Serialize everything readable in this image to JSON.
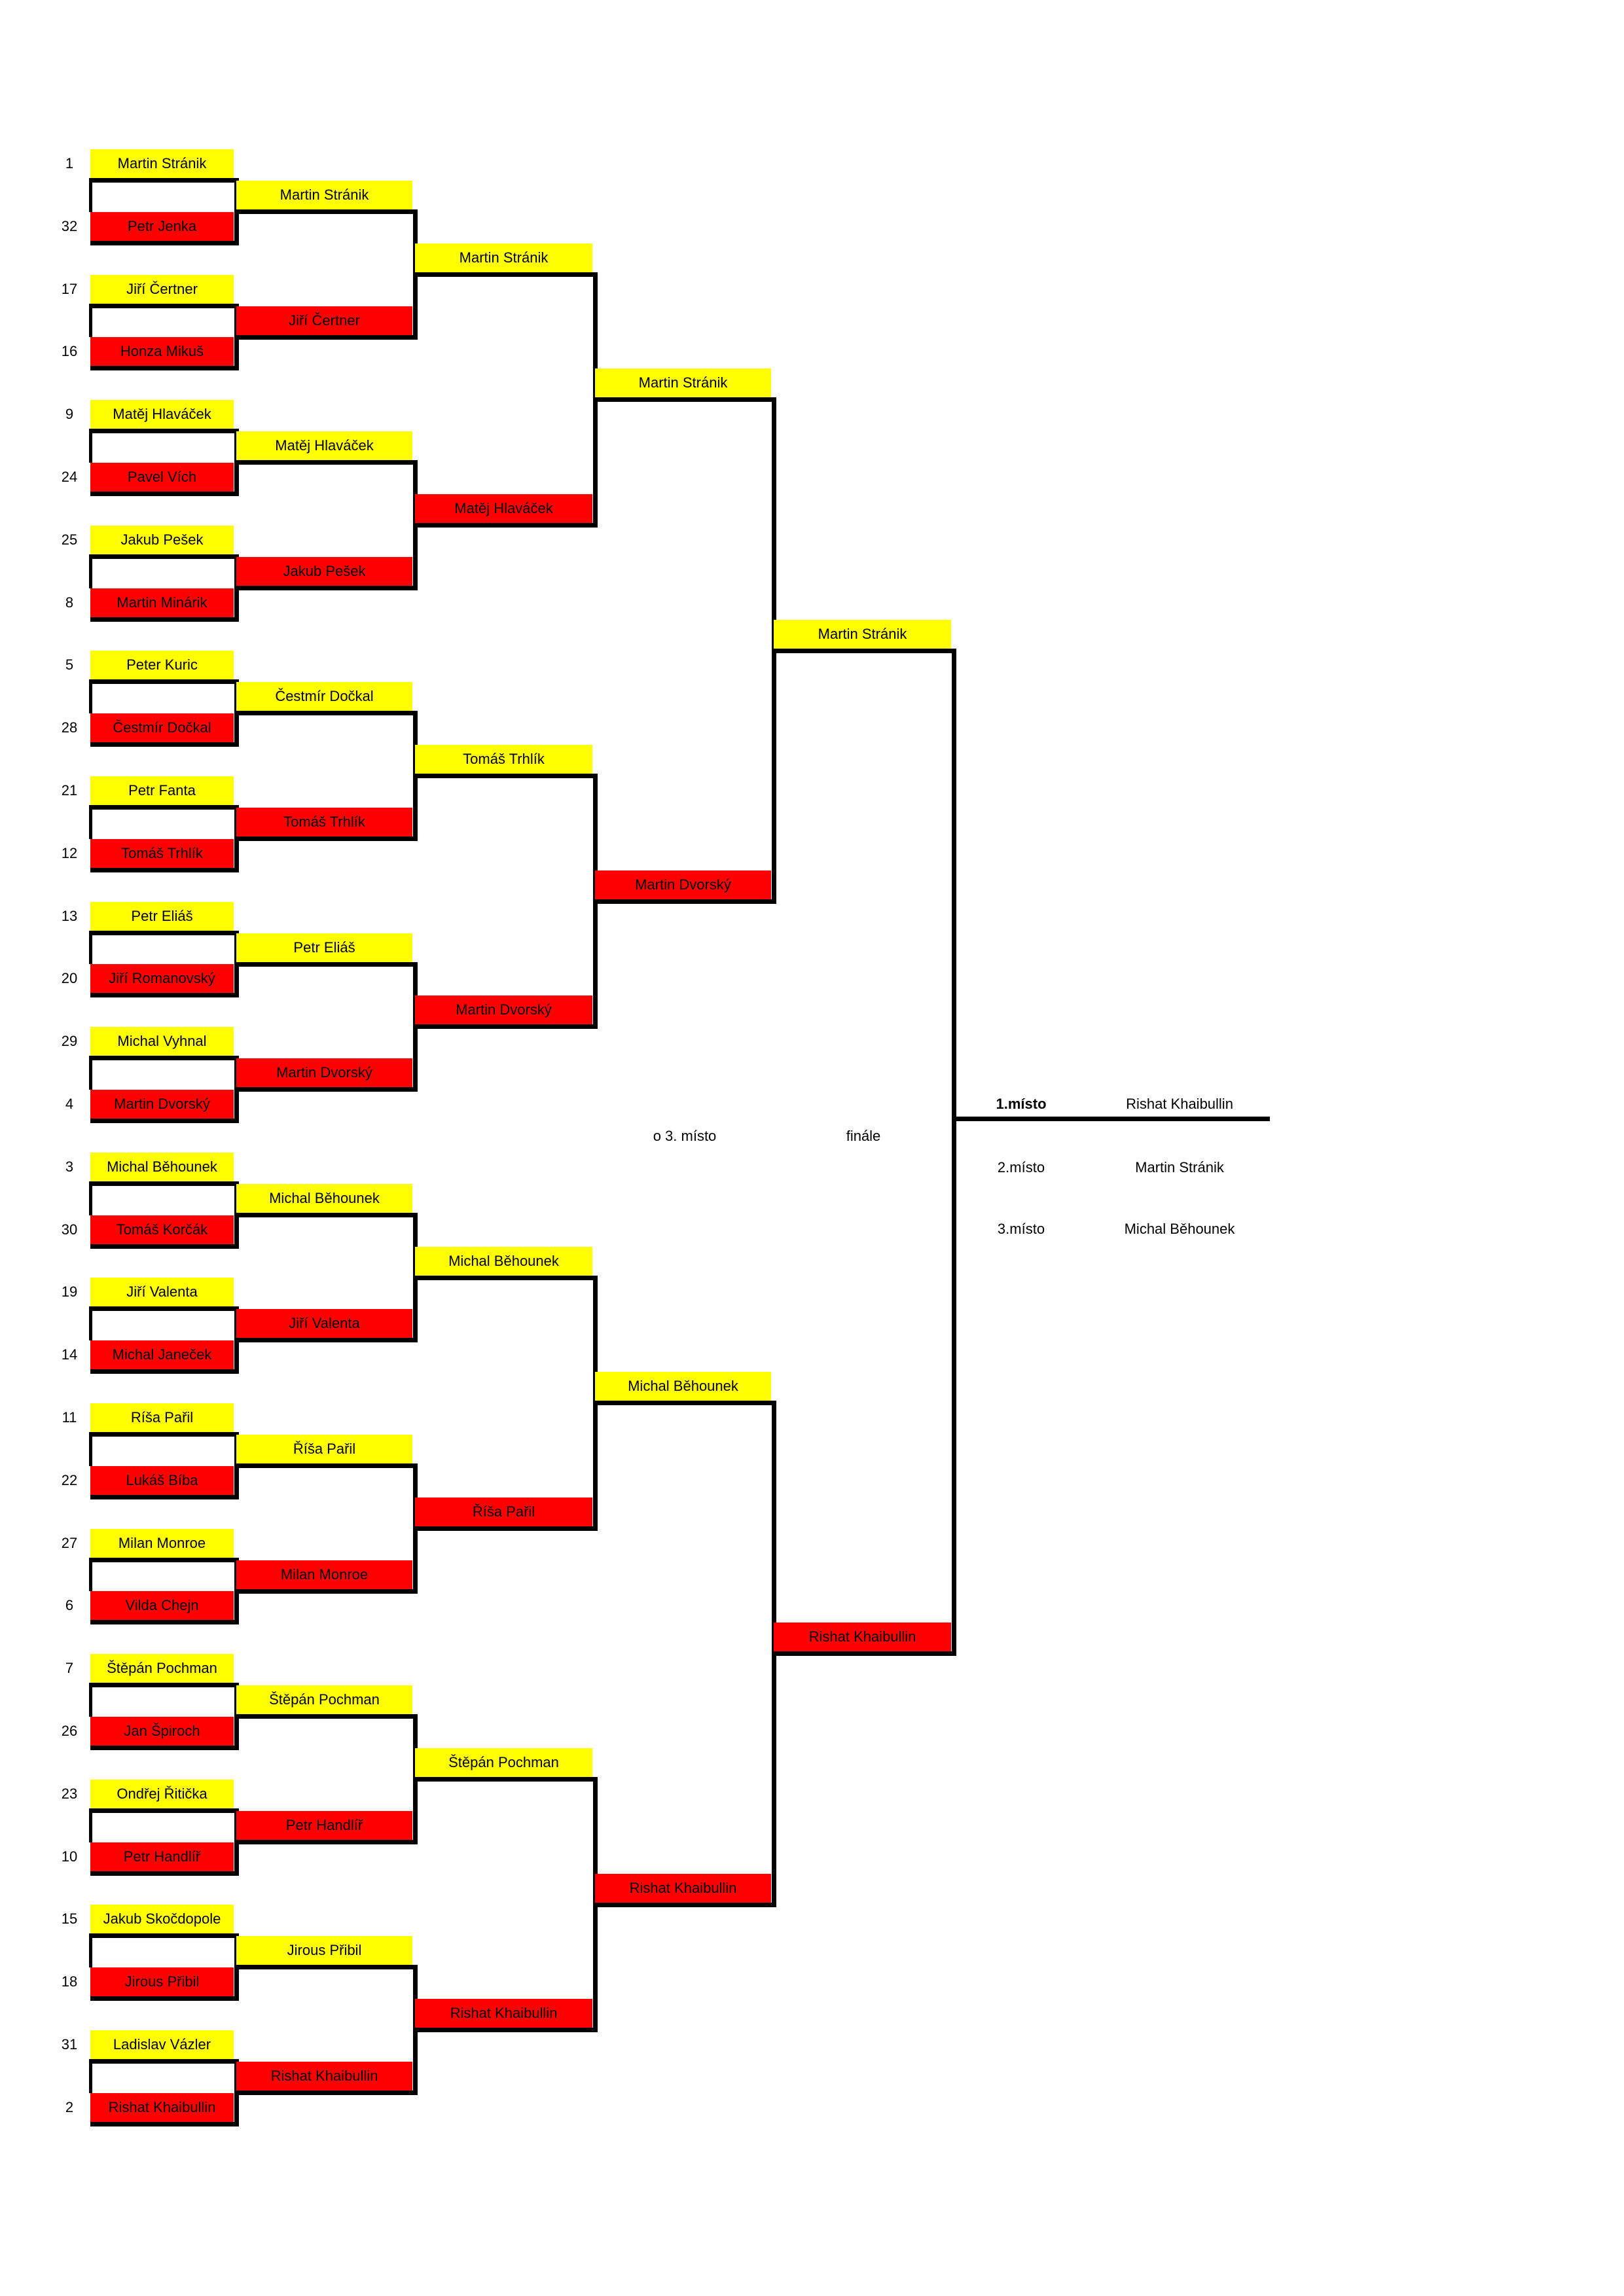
{
  "colors": {
    "winner": "#FFFF00",
    "loser": "#FF0000",
    "line": "#000000"
  },
  "seeds": [
    "1",
    "32",
    "17",
    "16",
    "9",
    "24",
    "25",
    "8",
    "5",
    "28",
    "21",
    "12",
    "13",
    "20",
    "29",
    "4",
    "3",
    "30",
    "19",
    "14",
    "11",
    "22",
    "27",
    "6",
    "7",
    "26",
    "23",
    "10",
    "15",
    "18",
    "31",
    "2"
  ],
  "rounds": [
    [
      "Martin Stránik",
      "Petr Jenka",
      "Jiří Čertner",
      "Honza Mikuš",
      "Matěj Hlaváček",
      "Pavel Vích",
      "Jakub Pešek",
      "Martin Minárik",
      "Peter Kuric",
      "Čestmír Dočkal",
      "Petr Fanta",
      "Tomáš Trhlík",
      "Petr Eliáš",
      "Jiří Romanovský",
      "Michal Vyhnal",
      "Martin Dvorský",
      "Michal Běhounek",
      "Tomáš Korčák",
      "Jiří Valenta",
      "Michal Janeček",
      "Ríša Pařil",
      "Lukáš Bíba",
      "Milan Monroe",
      "Vilda Chejn",
      "Štěpán Pochman",
      "Jan Špiroch",
      "Ondřej Řitička",
      "Petr Handlíř",
      "Jakub Skočdopole",
      "Jirous Přibil",
      "Ladislav Vázler",
      "Rishat Khaibullin"
    ],
    [
      "Martin Stránik",
      "Jiří Čertner",
      "Matěj Hlaváček",
      "Jakub Pešek",
      "Čestmír Dočkal",
      "Tomáš Trhlík",
      "Petr Eliáš",
      "Martin Dvorský",
      "Michal Běhounek",
      "Jiří Valenta",
      "Říša Pařil",
      "Milan Monroe",
      "Štěpán Pochman",
      "Petr Handlíř",
      "Jirous Přibil",
      "Rishat Khaibullin"
    ],
    [
      "Martin Stránik",
      "Matěj Hlaváček",
      "Tomáš Trhlík",
      "Martin Dvorský",
      "Michal Běhounek",
      "Říša Pařil",
      "Štěpán Pochman",
      "Rishat Khaibullin"
    ],
    [
      "Martin Stránik",
      "Martin Dvorský",
      "Michal Běhounek",
      "Rishat Khaibullin"
    ],
    [
      "Martin Stránik",
      "Rishat Khaibullin"
    ]
  ],
  "labels": {
    "third_place_match": "o 3. místo",
    "final": "finále"
  },
  "placements": [
    {
      "place": "1.místo",
      "name": "Rishat Khaibullin"
    },
    {
      "place": "2.místo",
      "name": "Martin Stránik"
    },
    {
      "place": "3.místo",
      "name": "Michal Běhounek"
    }
  ]
}
